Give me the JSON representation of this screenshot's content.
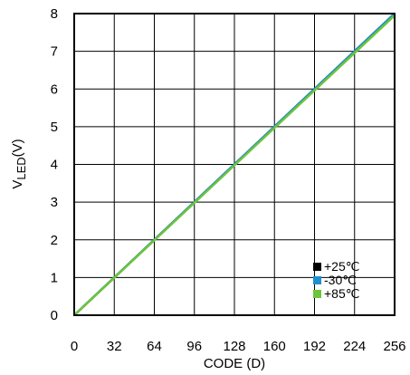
{
  "chart_data": {
    "type": "line",
    "xlabel": "CODE (D)",
    "ylabel_main": "V",
    "ylabel_sub": "LED",
    "ylabel_unit": "(V)",
    "x_ticks": [
      "0",
      "32",
      "64",
      "96",
      "128",
      "160",
      "192",
      "224",
      "256"
    ],
    "y_ticks": [
      "0",
      "1",
      "2",
      "3",
      "4",
      "5",
      "6",
      "7",
      "8"
    ],
    "xlim": [
      0,
      256
    ],
    "ylim": [
      0,
      8
    ],
    "grid": true,
    "legend_position": "bottom-right",
    "series": [
      {
        "name": "+25℃",
        "color": "#000000",
        "x": [
          0,
          256
        ],
        "y": [
          0,
          8.0
        ]
      },
      {
        "name": "-30℃",
        "color": "#1f8fd0",
        "x": [
          0,
          256
        ],
        "y": [
          0,
          8.0
        ]
      },
      {
        "name": "+85℃",
        "color": "#6cc53a",
        "x": [
          0,
          256
        ],
        "y": [
          0,
          7.95
        ]
      }
    ]
  }
}
